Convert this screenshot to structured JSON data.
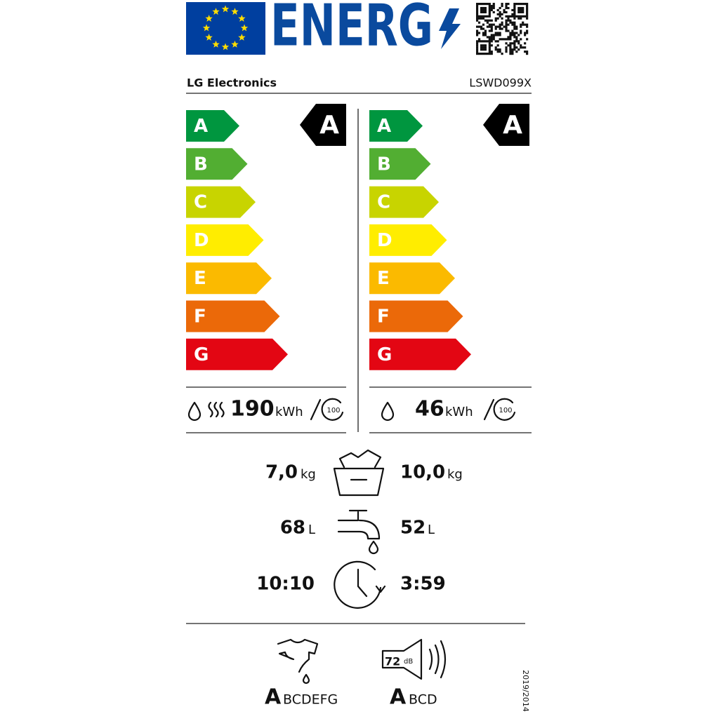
{
  "header": {
    "logo_text": "ENERG",
    "supplier": "LG Electronics",
    "model": "LSWD099X"
  },
  "washing": {
    "scale": [
      "A",
      "B",
      "C",
      "D",
      "E",
      "F",
      "G"
    ],
    "rating": "A",
    "energy": "190",
    "energy_unit": "kWh",
    "cycles": "100"
  },
  "washing_drying": {
    "scale": [
      "A",
      "B",
      "C",
      "D",
      "E",
      "F",
      "G"
    ],
    "rating": "A",
    "energy": "46",
    "energy_unit": "kWh",
    "cycles": "100"
  },
  "capacity": {
    "washing": "7,0",
    "washing_unit": "kg",
    "drying": "10,0",
    "drying_unit": "kg"
  },
  "water": {
    "washing": "68",
    "washing_unit": "L",
    "drying": "52",
    "drying_unit": "L"
  },
  "duration": {
    "washing": "10:10",
    "drying": "3:59"
  },
  "spin_class": {
    "rating": "A",
    "others": "BCDEFG"
  },
  "noise": {
    "value": "72",
    "unit": "dB",
    "rating": "A",
    "others": "BCD"
  },
  "regulation": "2019/2014"
}
